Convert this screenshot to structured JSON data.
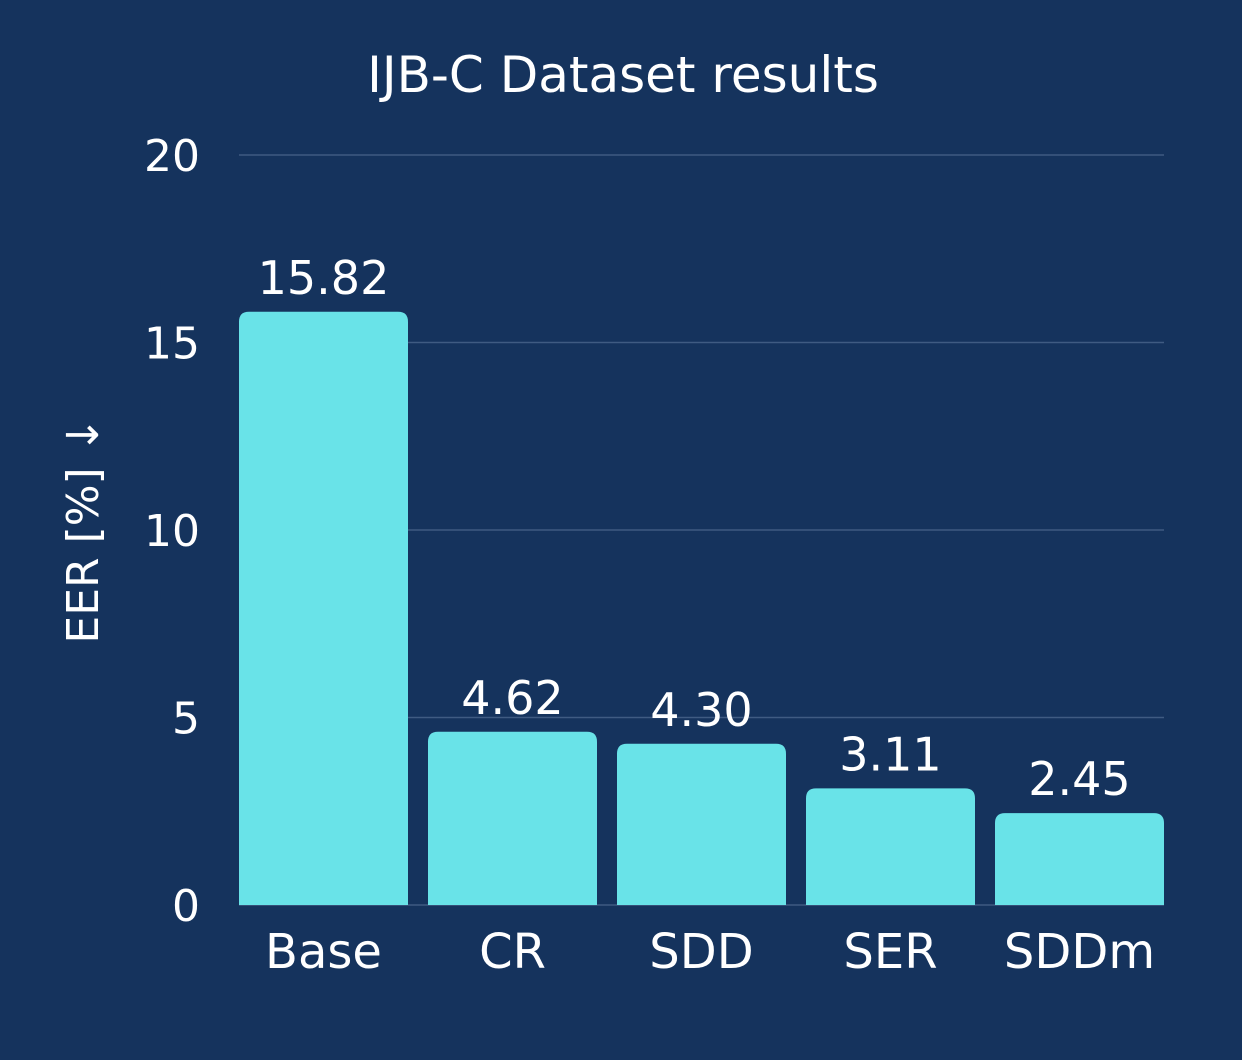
{
  "chart_data": {
    "type": "bar",
    "title": "IJB-C Dataset results",
    "xlabel": "",
    "ylabel": "EER [%] ↓",
    "categories": [
      "Base",
      "CR",
      "SDD",
      "SER",
      "SDDm"
    ],
    "values": [
      15.82,
      4.62,
      4.3,
      3.11,
      2.45
    ],
    "value_labels": [
      "15.82",
      "4.62",
      "4.30",
      "3.11",
      "2.45"
    ],
    "ylim": [
      0,
      20
    ],
    "yticks": [
      0,
      5,
      10,
      15,
      20
    ],
    "grid": true,
    "legend": "none",
    "colors": {
      "background": "#15335d",
      "bar": "#69e3e8",
      "grid": "#3f5b82",
      "text": "#ffffff"
    }
  }
}
